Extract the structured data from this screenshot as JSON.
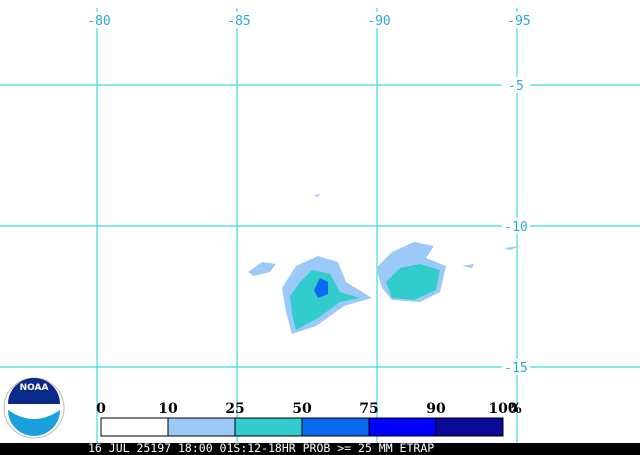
{
  "map": {
    "longitudes": [
      -80,
      -85,
      -90,
      -95
    ],
    "latitudes": [
      -5,
      -10,
      -15
    ]
  },
  "legend": {
    "bounds": [
      0,
      10,
      25,
      50,
      75,
      90,
      100
    ],
    "unit": "%",
    "colors": [
      "#ffffff",
      "#9ccaf8",
      "#33cccc",
      "#0a6af2",
      "#0000ff",
      "#0a0a96"
    ]
  },
  "logo": "NOAA",
  "footer": "16 JUL 25197 18:00 01S:12-18HR PROB >= 25 MM ETRAP"
}
